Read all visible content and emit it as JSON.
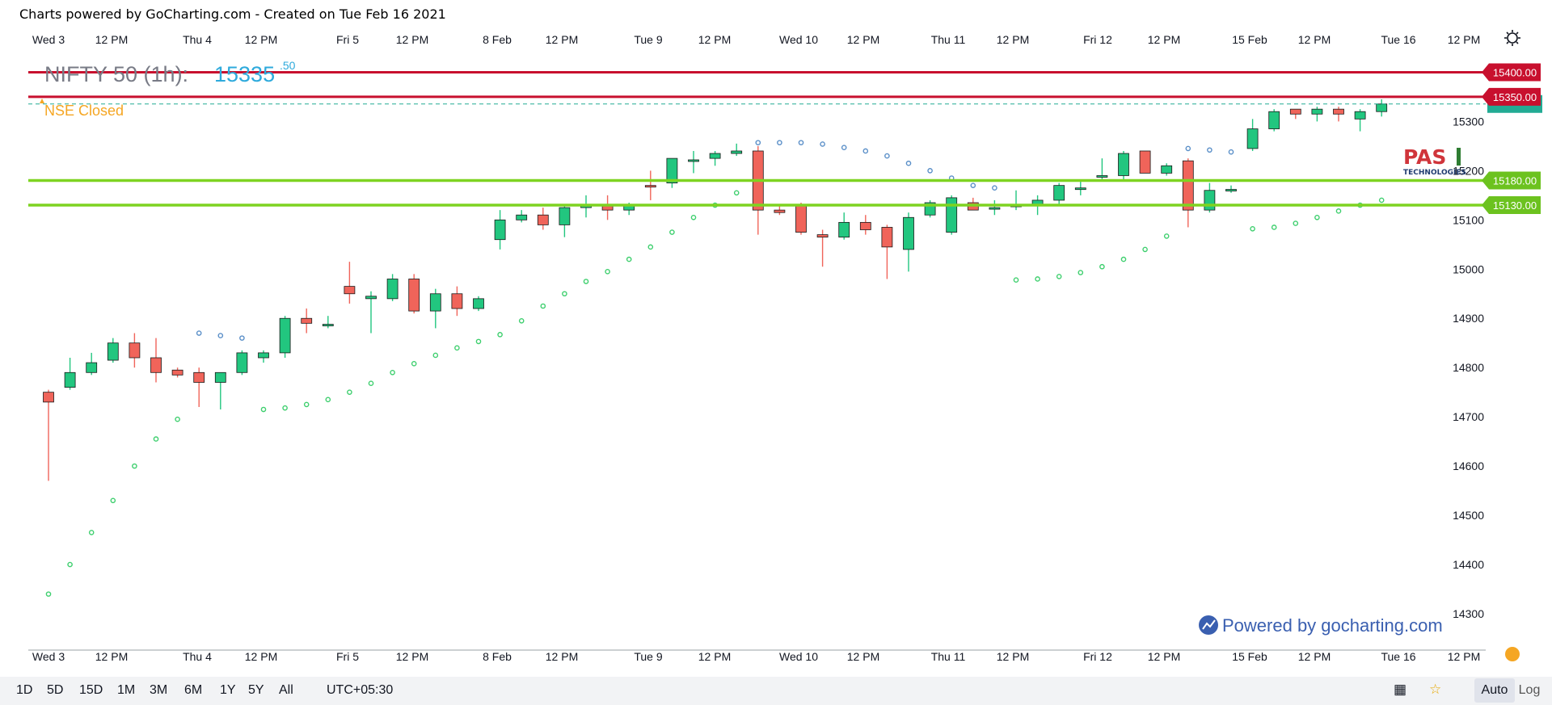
{
  "header": {
    "caption": "Charts powered by GoCharting.com - Created on Tue Feb 16 2021"
  },
  "legend": {
    "symbol": "NIFTY 50 (1h):",
    "price_main": "15335",
    "price_dec": ".50",
    "status": "NSE Closed"
  },
  "levels": [
    {
      "value": 15400,
      "label": "15400.00",
      "color": "#c8102e"
    },
    {
      "value": 15350,
      "label": "15350.00",
      "color": "#c8102e"
    },
    {
      "value": 15180,
      "label": "15180.00",
      "color": "#7ed321"
    },
    {
      "value": 15130,
      "label": "15130.00",
      "color": "#7ed321"
    }
  ],
  "last_price": {
    "value": 15335.5,
    "color": "#22ab94"
  },
  "watermark": {
    "text": "Powered by gocharting.com",
    "logo_text": "PAS",
    "logo_sub": "TECHNOLOGIES"
  },
  "bottom_bar": {
    "timeframes": [
      "1D",
      "5D",
      "15D",
      "1M",
      "3M",
      "6M",
      "1Y",
      "5Y",
      "All"
    ],
    "timezone": "UTC+05:30",
    "auto_label": "Auto",
    "log_label": "Log"
  },
  "colors": {
    "up": "#22c67f",
    "down": "#f0645a",
    "psar_above": "#5a8fc8",
    "psar_below": "#3ecf6e"
  },
  "chart_data": {
    "type": "candlestick",
    "title": "NIFTY 50 (1h)",
    "x_tick_labels": [
      "Wed 3",
      "12 PM",
      "Thu 4",
      "12 PM",
      "Fri 5",
      "12 PM",
      "8 Feb",
      "12 PM",
      "Tue 9",
      "12 PM",
      "Wed 10",
      "12 PM",
      "Thu 11",
      "12 PM",
      "Fri 12",
      "12 PM",
      "15 Feb",
      "12 PM",
      "Tue 16",
      "12 PM"
    ],
    "y_ticks": [
      14300,
      14400,
      14500,
      14600,
      14700,
      14800,
      14900,
      15000,
      15100,
      15200,
      15300
    ],
    "ylim": [
      14260,
      15460
    ],
    "candles": [
      [
        14750,
        14755,
        14570,
        14730
      ],
      [
        14760,
        14820,
        14755,
        14790
      ],
      [
        14790,
        14830,
        14785,
        14810
      ],
      [
        14815,
        14860,
        14810,
        14850
      ],
      [
        14850,
        14870,
        14800,
        14820
      ],
      [
        14820,
        14860,
        14770,
        14790
      ],
      [
        14795,
        14800,
        14780,
        14785
      ],
      [
        14790,
        14800,
        14720,
        14770
      ],
      [
        14770,
        14790,
        14715,
        14790
      ],
      [
        14790,
        14835,
        14785,
        14830
      ],
      [
        14820,
        14835,
        14810,
        14830
      ],
      [
        14830,
        14905,
        14820,
        14900
      ],
      [
        14900,
        14920,
        14870,
        14890
      ],
      [
        14885,
        14905,
        14880,
        14888
      ],
      [
        14965,
        15015,
        14930,
        14950
      ],
      [
        14940,
        14955,
        14870,
        14945
      ],
      [
        14940,
        14990,
        14935,
        14980
      ],
      [
        14980,
        14990,
        14910,
        14915
      ],
      [
        14915,
        14960,
        14880,
        14950
      ],
      [
        14950,
        14965,
        14905,
        14920
      ],
      [
        14920,
        14945,
        14915,
        14940
      ],
      [
        15060,
        15120,
        15040,
        15100
      ],
      [
        15100,
        15120,
        15095,
        15110
      ],
      [
        15110,
        15125,
        15080,
        15090
      ],
      [
        15090,
        15130,
        15065,
        15125
      ],
      [
        15125,
        15150,
        15105,
        15130
      ],
      [
        15130,
        15150,
        15100,
        15120
      ],
      [
        15120,
        15135,
        15110,
        15130
      ],
      [
        15170,
        15200,
        15140,
        15168
      ],
      [
        15175,
        15225,
        15165,
        15225
      ],
      [
        15220,
        15240,
        15195,
        15222
      ],
      [
        15225,
        15240,
        15210,
        15235
      ],
      [
        15235,
        15255,
        15230,
        15240
      ],
      [
        15240,
        15250,
        15070,
        15120
      ],
      [
        15120,
        15130,
        15110,
        15115
      ],
      [
        15130,
        15135,
        15070,
        15075
      ],
      [
        15070,
        15080,
        15005,
        15065
      ],
      [
        15065,
        15115,
        15060,
        15095
      ],
      [
        15095,
        15110,
        15070,
        15080
      ],
      [
        15085,
        15090,
        14980,
        15045
      ],
      [
        15040,
        15115,
        14995,
        15105
      ],
      [
        15110,
        15140,
        15105,
        15135
      ],
      [
        15075,
        15150,
        15070,
        15145
      ],
      [
        15135,
        15145,
        15120,
        15120
      ],
      [
        15125,
        15140,
        15110,
        15125
      ],
      [
        15130,
        15160,
        15120,
        15130
      ],
      [
        15130,
        15150,
        15110,
        15140
      ],
      [
        15140,
        15175,
        15130,
        15170
      ],
      [
        15165,
        15180,
        15150,
        15165
      ],
      [
        15190,
        15225,
        15180,
        15190
      ],
      [
        15190,
        15240,
        15180,
        15235
      ],
      [
        15240,
        15240,
        15195,
        15195
      ],
      [
        15195,
        15215,
        15190,
        15210
      ],
      [
        15220,
        15225,
        15085,
        15120
      ],
      [
        15120,
        15175,
        15115,
        15160
      ],
      [
        15160,
        15170,
        15155,
        15162
      ],
      [
        15245,
        15305,
        15240,
        15285
      ],
      [
        15285,
        15325,
        15280,
        15320
      ],
      [
        15325,
        15320,
        15305,
        15315
      ],
      [
        15315,
        15330,
        15300,
        15325
      ],
      [
        15325,
        15330,
        15300,
        15315
      ],
      [
        15305,
        15325,
        15280,
        15320
      ],
      [
        15320,
        15345,
        15310,
        15335.5
      ]
    ],
    "psar": [
      [
        0,
        14340,
        "below"
      ],
      [
        1,
        14400,
        "below"
      ],
      [
        2,
        14465,
        "below"
      ],
      [
        3,
        14530,
        "below"
      ],
      [
        4,
        14600,
        "below"
      ],
      [
        5,
        14655,
        "below"
      ],
      [
        6,
        14695,
        "below"
      ],
      [
        7,
        14870,
        "above"
      ],
      [
        8,
        14865,
        "above"
      ],
      [
        9,
        14860,
        "above"
      ],
      [
        10,
        14715,
        "below"
      ],
      [
        11,
        14718,
        "below"
      ],
      [
        12,
        14725,
        "below"
      ],
      [
        13,
        14735,
        "below"
      ],
      [
        14,
        14750,
        "below"
      ],
      [
        15,
        14768,
        "below"
      ],
      [
        16,
        14790,
        "below"
      ],
      [
        17,
        14808,
        "below"
      ],
      [
        18,
        14825,
        "below"
      ],
      [
        19,
        14840,
        "below"
      ],
      [
        20,
        14853,
        "below"
      ],
      [
        21,
        14867,
        "below"
      ],
      [
        22,
        14895,
        "below"
      ],
      [
        23,
        14925,
        "below"
      ],
      [
        24,
        14950,
        "below"
      ],
      [
        25,
        14975,
        "below"
      ],
      [
        26,
        14995,
        "below"
      ],
      [
        27,
        15020,
        "below"
      ],
      [
        28,
        15045,
        "below"
      ],
      [
        29,
        15075,
        "below"
      ],
      [
        30,
        15105,
        "below"
      ],
      [
        31,
        15130,
        "below"
      ],
      [
        32,
        15155,
        "below"
      ],
      [
        33,
        15257,
        "above"
      ],
      [
        34,
        15257,
        "above"
      ],
      [
        35,
        15257,
        "above"
      ],
      [
        36,
        15254,
        "above"
      ],
      [
        37,
        15247,
        "above"
      ],
      [
        38,
        15240,
        "above"
      ],
      [
        39,
        15230,
        "above"
      ],
      [
        40,
        15215,
        "above"
      ],
      [
        41,
        15200,
        "above"
      ],
      [
        42,
        15185,
        "above"
      ],
      [
        43,
        15170,
        "above"
      ],
      [
        44,
        15165,
        "above"
      ],
      [
        45,
        14978,
        "below"
      ],
      [
        46,
        14980,
        "below"
      ],
      [
        47,
        14985,
        "below"
      ],
      [
        48,
        14993,
        "below"
      ],
      [
        49,
        15005,
        "below"
      ],
      [
        50,
        15020,
        "below"
      ],
      [
        51,
        15040,
        "below"
      ],
      [
        52,
        15067,
        "below"
      ],
      [
        53,
        15245,
        "above"
      ],
      [
        54,
        15242,
        "above"
      ],
      [
        55,
        15238,
        "above"
      ],
      [
        56,
        15082,
        "below"
      ],
      [
        57,
        15085,
        "below"
      ],
      [
        58,
        15093,
        "below"
      ],
      [
        59,
        15105,
        "below"
      ],
      [
        60,
        15118,
        "below"
      ],
      [
        61,
        15130,
        "below"
      ],
      [
        62,
        15140,
        "below"
      ]
    ],
    "legend": [
      "NIFTY 50 (1h)"
    ]
  }
}
